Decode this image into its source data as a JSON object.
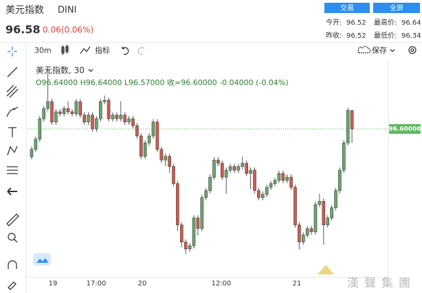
{
  "header": {
    "name": "美元指数",
    "code": "DINI",
    "price": "96.58",
    "change": "0.06(0.06%)",
    "buttons": [
      "交易",
      "全屏"
    ],
    "stats": [
      {
        "label": "今开:",
        "value": "96.52"
      },
      {
        "label": "最高价:",
        "value": "96.64"
      },
      {
        "label": "昨收:",
        "value": "96.52"
      },
      {
        "label": "最低价:",
        "value": "96.34"
      }
    ]
  },
  "toolbar": {
    "interval": "30m",
    "indicators": "指标",
    "save": "保存"
  },
  "chart_data": {
    "type": "candlestick",
    "title": "美元指数, 30",
    "ohlc_legend": "O96.64000 H96.64000 L96.57000 收=96.60000 -0.04000 (-0.04%)",
    "last_price": {
      "value": 96.6,
      "label": "96.60000"
    },
    "up_color": "#6aa86f",
    "down_color": "#d25b4f",
    "ylim": [
      96.286,
      96.748
    ],
    "xlabels": [
      "19",
      "17:00",
      "20",
      "12:00",
      "21"
    ],
    "open": [
      96.54,
      96.556,
      96.578,
      96.622,
      96.644,
      96.659,
      96.615,
      96.637,
      96.633,
      96.644,
      96.637,
      96.633,
      96.659,
      96.63,
      96.615,
      96.63,
      96.6,
      96.622,
      96.659,
      96.662,
      96.622,
      96.63,
      96.622,
      96.63,
      96.615,
      96.622,
      96.607,
      96.585,
      96.541,
      96.57,
      96.585,
      96.615,
      96.556,
      96.533,
      96.541,
      96.519,
      96.482,
      96.393,
      96.356,
      96.341,
      96.348,
      96.408,
      96.385,
      96.452,
      96.467,
      96.496,
      96.533,
      96.526,
      96.496,
      96.511,
      96.519,
      96.511,
      96.519,
      96.526,
      96.504,
      96.511,
      96.467,
      96.452,
      96.459,
      96.474,
      96.482,
      96.489,
      96.504,
      96.489,
      96.496,
      96.474,
      96.393,
      96.356,
      96.371,
      96.385,
      96.378,
      96.437,
      96.444,
      96.393,
      96.408,
      96.43,
      96.467,
      96.511,
      96.57,
      96.64
    ],
    "high": [
      96.562,
      96.584,
      96.628,
      96.65,
      96.735,
      96.665,
      96.643,
      96.643,
      96.65,
      96.66,
      96.643,
      96.665,
      96.665,
      96.636,
      96.636,
      96.636,
      96.628,
      96.665,
      96.672,
      96.668,
      96.636,
      96.636,
      96.66,
      96.636,
      96.628,
      96.628,
      96.613,
      96.591,
      96.576,
      96.591,
      96.621,
      96.621,
      96.562,
      96.547,
      96.547,
      96.525,
      96.488,
      96.399,
      96.362,
      96.354,
      96.414,
      96.414,
      96.458,
      96.473,
      96.502,
      96.539,
      96.539,
      96.532,
      96.517,
      96.525,
      96.525,
      96.525,
      96.54,
      96.532,
      96.517,
      96.517,
      96.473,
      96.465,
      96.48,
      96.488,
      96.495,
      96.51,
      96.51,
      96.502,
      96.502,
      96.48,
      96.399,
      96.377,
      96.391,
      96.391,
      96.443,
      96.46,
      96.45,
      96.414,
      96.436,
      96.473,
      96.517,
      96.576,
      96.646,
      96.64
    ],
    "low": [
      96.534,
      96.55,
      96.572,
      96.616,
      96.638,
      96.609,
      96.609,
      96.627,
      96.627,
      96.631,
      96.627,
      96.627,
      96.624,
      96.609,
      96.609,
      96.594,
      96.594,
      96.616,
      96.653,
      96.616,
      96.616,
      96.616,
      96.616,
      96.609,
      96.609,
      96.601,
      96.579,
      96.535,
      96.535,
      96.564,
      96.579,
      96.55,
      96.527,
      96.52,
      96.505,
      96.476,
      96.38,
      96.345,
      96.33,
      96.335,
      96.342,
      96.37,
      96.379,
      96.446,
      96.461,
      96.49,
      96.52,
      96.49,
      96.46,
      96.505,
      96.505,
      96.505,
      96.513,
      96.498,
      96.47,
      96.461,
      96.446,
      96.446,
      96.453,
      96.468,
      96.476,
      96.483,
      96.483,
      96.483,
      96.468,
      96.387,
      96.34,
      96.35,
      96.365,
      96.372,
      96.372,
      96.431,
      96.35,
      96.387,
      96.402,
      96.424,
      96.461,
      96.505,
      96.564,
      96.57
    ],
    "close": [
      96.556,
      96.578,
      96.622,
      96.644,
      96.659,
      96.615,
      96.637,
      96.633,
      96.644,
      96.637,
      96.633,
      96.659,
      96.63,
      96.615,
      96.63,
      96.6,
      96.622,
      96.659,
      96.662,
      96.622,
      96.63,
      96.622,
      96.63,
      96.615,
      96.622,
      96.607,
      96.585,
      96.541,
      96.57,
      96.585,
      96.615,
      96.556,
      96.533,
      96.541,
      96.519,
      96.482,
      96.393,
      96.356,
      96.341,
      96.348,
      96.408,
      96.385,
      96.452,
      96.467,
      96.496,
      96.533,
      96.526,
      96.496,
      96.511,
      96.519,
      96.511,
      96.519,
      96.526,
      96.504,
      96.511,
      96.467,
      96.452,
      96.459,
      96.474,
      96.482,
      96.489,
      96.504,
      96.489,
      96.496,
      96.474,
      96.393,
      96.356,
      96.371,
      96.385,
      96.378,
      96.437,
      96.444,
      96.393,
      96.408,
      96.43,
      96.467,
      96.511,
      96.57,
      96.64,
      96.6
    ]
  },
  "watermark": "漢聲集團"
}
